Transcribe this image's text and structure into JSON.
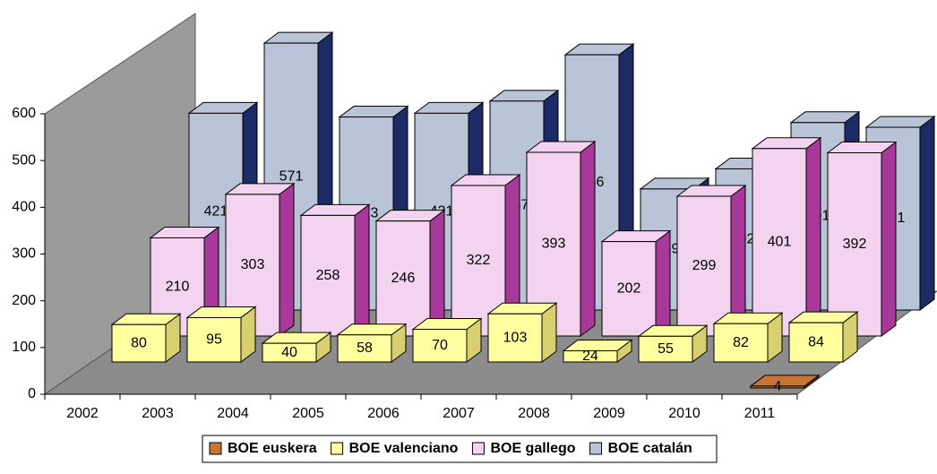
{
  "chart_data": {
    "type": "bar3d",
    "categories": [
      "2002",
      "2003",
      "2004",
      "2005",
      "2006",
      "2007",
      "2008",
      "2009",
      "2010",
      "2011"
    ],
    "series": [
      {
        "name": "BOE euskera",
        "color": "#c87533",
        "side": "#8a4a1c",
        "values": [
          null,
          null,
          null,
          null,
          null,
          null,
          null,
          null,
          null,
          4
        ]
      },
      {
        "name": "BOE valenciano",
        "color": "#ffffa0",
        "side": "#d8d070",
        "values": [
          80,
          95,
          40,
          58,
          70,
          103,
          24,
          55,
          82,
          84
        ]
      },
      {
        "name": "BOE gallego",
        "color": "#f3d3ef",
        "side": "#a8389a",
        "values": [
          210,
          303,
          258,
          246,
          322,
          393,
          202,
          299,
          401,
          392
        ]
      },
      {
        "name": "BOE catalán",
        "color": "#b9c4d8",
        "side": "#1c2a66",
        "values": [
          421,
          571,
          413,
          421,
          447,
          546,
          259,
          302,
          401,
          391
        ]
      }
    ],
    "ylim": [
      0,
      600
    ],
    "yticks": [
      0,
      100,
      200,
      300,
      400,
      500,
      600
    ],
    "legend": "bottom"
  }
}
